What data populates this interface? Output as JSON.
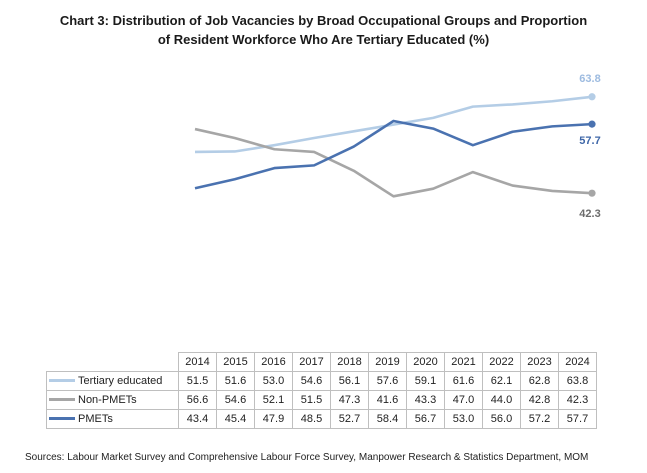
{
  "title_line1": "Chart 3: Distribution of Job Vacancies by Broad Occupational Groups and Proportion",
  "title_line2": "of Resident Workforce Who Are Tertiary Educated (%)",
  "source": "Sources: Labour Market Survey and Comprehensive Labour Force Survey, Manpower Research & Statistics Department, MOM",
  "chart_data": {
    "type": "line",
    "x": [
      "2014",
      "2015",
      "2016",
      "2017",
      "2018",
      "2019",
      "2020",
      "2021",
      "2022",
      "2023",
      "2024"
    ],
    "series": [
      {
        "name": "Tertiary educated",
        "color": "#b4cde6",
        "values": [
          51.5,
          51.6,
          53.0,
          54.6,
          56.1,
          57.6,
          59.1,
          61.6,
          62.1,
          62.8,
          63.8
        ],
        "end_label": "63.8",
        "label_color": "#9dbbe0"
      },
      {
        "name": "Non-PMETs",
        "color": "#a6a6a6",
        "values": [
          56.6,
          54.6,
          52.1,
          51.5,
          47.3,
          41.6,
          43.3,
          47.0,
          44.0,
          42.8,
          42.3
        ],
        "end_label": "42.3",
        "label_color": "#6b6b6b"
      },
      {
        "name": "PMETs",
        "color": "#4a72b0",
        "values": [
          43.4,
          45.4,
          47.9,
          48.5,
          52.7,
          58.4,
          56.7,
          53.0,
          56.0,
          57.2,
          57.7
        ],
        "end_label": "57.7",
        "label_color": "#3f67a8"
      }
    ],
    "display_values": [
      [
        "51.5",
        "51.6",
        "53.0",
        "54.6",
        "56.1",
        "57.6",
        "59.1",
        "61.6",
        "62.1",
        "62.8",
        "63.8"
      ],
      [
        "56.6",
        "54.6",
        "52.1",
        "51.5",
        "47.3",
        "41.6",
        "43.3",
        "47.0",
        "44.0",
        "42.8",
        "42.3"
      ],
      [
        "43.4",
        "45.4",
        "47.9",
        "48.5",
        "52.7",
        "58.4",
        "56.7",
        "53.0",
        "56.0",
        "57.2",
        "57.7"
      ]
    ],
    "ylim": [
      8,
      72
    ],
    "legend": "data-table"
  }
}
